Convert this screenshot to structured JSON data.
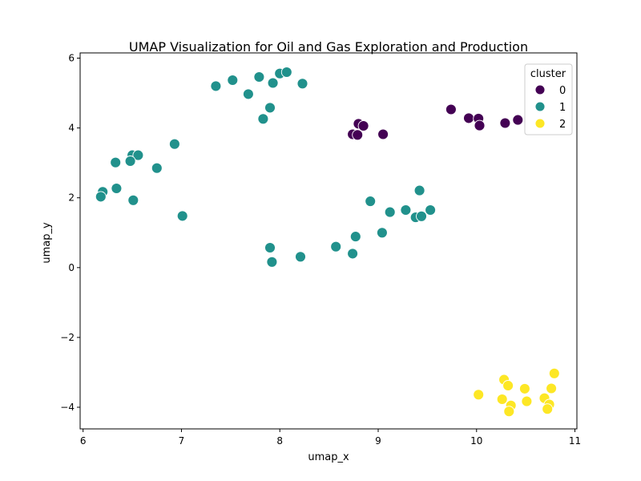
{
  "chart_data": {
    "type": "scatter",
    "title": "UMAP Visualization for Oil and Gas Exploration and Production",
    "xlabel": "umap_x",
    "ylabel": "umap_y",
    "xlim": [
      5.97,
      11.02
    ],
    "ylim": [
      -4.62,
      6.15
    ],
    "xticks": [
      6,
      7,
      8,
      9,
      10,
      11
    ],
    "yticks": [
      -4,
      -2,
      0,
      2,
      4,
      6
    ],
    "xtick_labels": [
      "6",
      "7",
      "8",
      "9",
      "10",
      "11"
    ],
    "ytick_labels": [
      "−4",
      "−2",
      "0",
      "2",
      "4",
      "6"
    ],
    "grid": false,
    "legend": {
      "title": "cluster",
      "placement": "top-right"
    },
    "series": [
      {
        "name": "0",
        "color": "#440154",
        "points": [
          [
            8.8,
            4.12
          ],
          [
            8.85,
            4.06
          ],
          [
            8.74,
            3.82
          ],
          [
            8.79,
            3.8
          ],
          [
            9.05,
            3.82
          ],
          [
            9.74,
            4.53
          ],
          [
            9.92,
            4.28
          ],
          [
            10.02,
            4.27
          ],
          [
            10.03,
            4.07
          ],
          [
            10.29,
            4.14
          ],
          [
            10.42,
            4.23
          ]
        ]
      },
      {
        "name": "1",
        "color": "#21918c",
        "points": [
          [
            7.35,
            5.2
          ],
          [
            7.52,
            5.37
          ],
          [
            7.68,
            4.97
          ],
          [
            7.79,
            5.46
          ],
          [
            7.93,
            5.29
          ],
          [
            8.0,
            5.56
          ],
          [
            8.07,
            5.6
          ],
          [
            8.23,
            5.27
          ],
          [
            7.9,
            4.58
          ],
          [
            7.83,
            4.26
          ],
          [
            6.93,
            3.54
          ],
          [
            6.5,
            3.22
          ],
          [
            6.56,
            3.22
          ],
          [
            6.48,
            3.05
          ],
          [
            6.33,
            3.01
          ],
          [
            6.75,
            2.85
          ],
          [
            6.2,
            2.17
          ],
          [
            6.18,
            2.03
          ],
          [
            6.34,
            2.27
          ],
          [
            6.51,
            1.93
          ],
          [
            7.01,
            1.48
          ],
          [
            8.92,
            1.9
          ],
          [
            9.42,
            2.21
          ],
          [
            9.12,
            1.59
          ],
          [
            9.28,
            1.65
          ],
          [
            9.38,
            1.44
          ],
          [
            9.44,
            1.47
          ],
          [
            9.53,
            1.65
          ],
          [
            9.04,
            1.0
          ],
          [
            8.77,
            0.89
          ],
          [
            8.57,
            0.6
          ],
          [
            8.74,
            0.4
          ],
          [
            7.9,
            0.57
          ],
          [
            7.92,
            0.16
          ],
          [
            8.21,
            0.31
          ]
        ]
      },
      {
        "name": "2",
        "color": "#fde725",
        "points": [
          [
            10.28,
            -3.21
          ],
          [
            10.32,
            -3.38
          ],
          [
            10.49,
            -3.47
          ],
          [
            10.76,
            -3.46
          ],
          [
            10.79,
            -3.03
          ],
          [
            10.02,
            -3.64
          ],
          [
            10.26,
            -3.77
          ],
          [
            10.51,
            -3.83
          ],
          [
            10.69,
            -3.74
          ],
          [
            10.74,
            -3.92
          ],
          [
            10.35,
            -3.95
          ],
          [
            10.33,
            -4.12
          ],
          [
            10.72,
            -4.05
          ]
        ]
      }
    ]
  }
}
